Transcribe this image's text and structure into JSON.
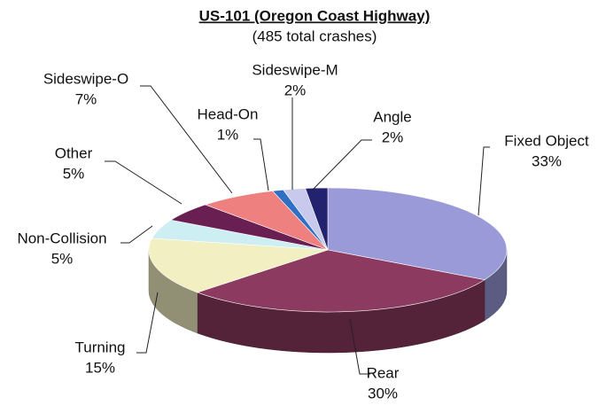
{
  "chart_data": {
    "type": "pie3d",
    "title": "US-101 (Oregon Coast Highway)",
    "subtitle": "(485 total crashes)",
    "categories": [
      "Fixed Object",
      "Rear",
      "Turning",
      "Non-Collision",
      "Other",
      "Sideswipe-O",
      "Head-On",
      "Sideswipe-M",
      "Angle"
    ],
    "values": [
      33,
      30,
      15,
      5,
      5,
      7,
      1,
      2,
      2
    ],
    "value_labels": [
      "33%",
      "30%",
      "15%",
      "5%",
      "5%",
      "7%",
      "1%",
      "2%",
      "2%"
    ],
    "colors": [
      "#9a9ad8",
      "#8c3a60",
      "#f2f0c2",
      "#cdeef2",
      "#6a1f52",
      "#ef8080",
      "#2f6fc4",
      "#c9c9ee",
      "#22226e"
    ]
  }
}
